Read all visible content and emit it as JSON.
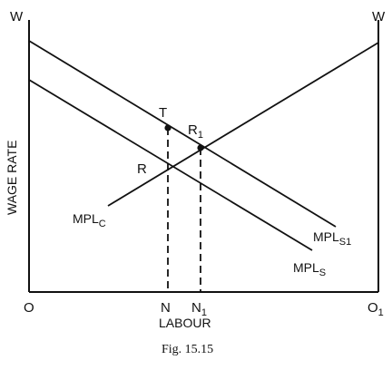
{
  "axes": {
    "left_top": "W",
    "right_top": "W",
    "origin_left": "O",
    "origin_right_main": "O",
    "origin_right_sub": "1",
    "y_label": "WAGE RATE",
    "x_label": "LABOUR"
  },
  "points": {
    "T": "T",
    "R": "R",
    "R1_main": "R",
    "R1_sub": "1",
    "N": "N",
    "N1_main": "N",
    "N1_sub": "1"
  },
  "curves": {
    "mplc_main": "MPL",
    "mplc_sub": "C",
    "mpls1_main": "MPL",
    "mpls1_sub": "S1",
    "mpls_main": "MPL",
    "mpls_sub": "S"
  },
  "caption": "Fig. 15.15"
}
